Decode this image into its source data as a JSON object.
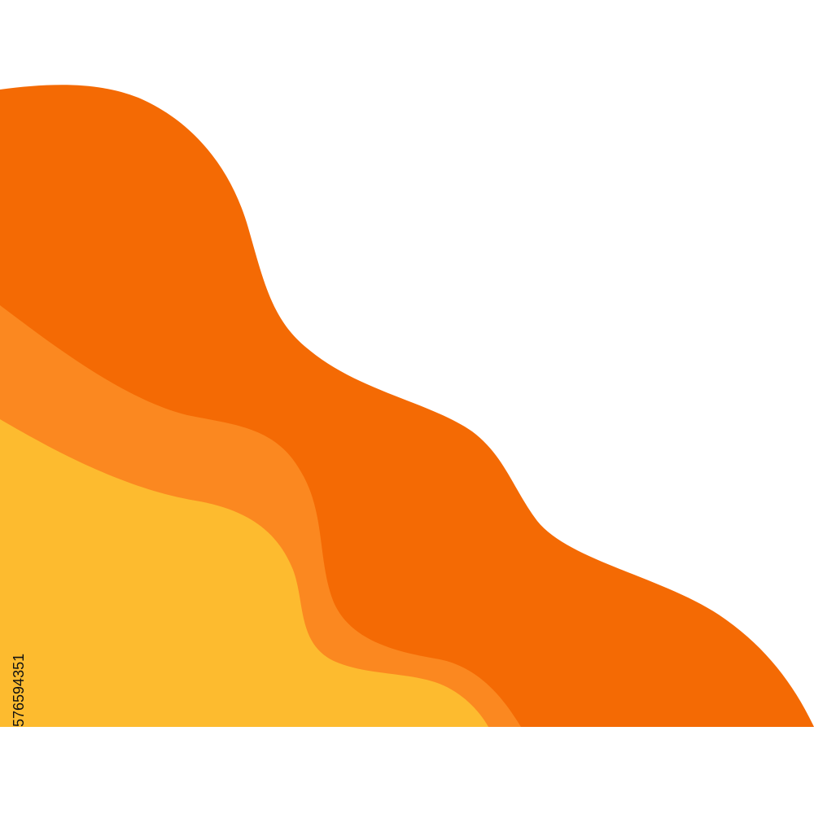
{
  "image": {
    "id_label": "576594351"
  }
}
